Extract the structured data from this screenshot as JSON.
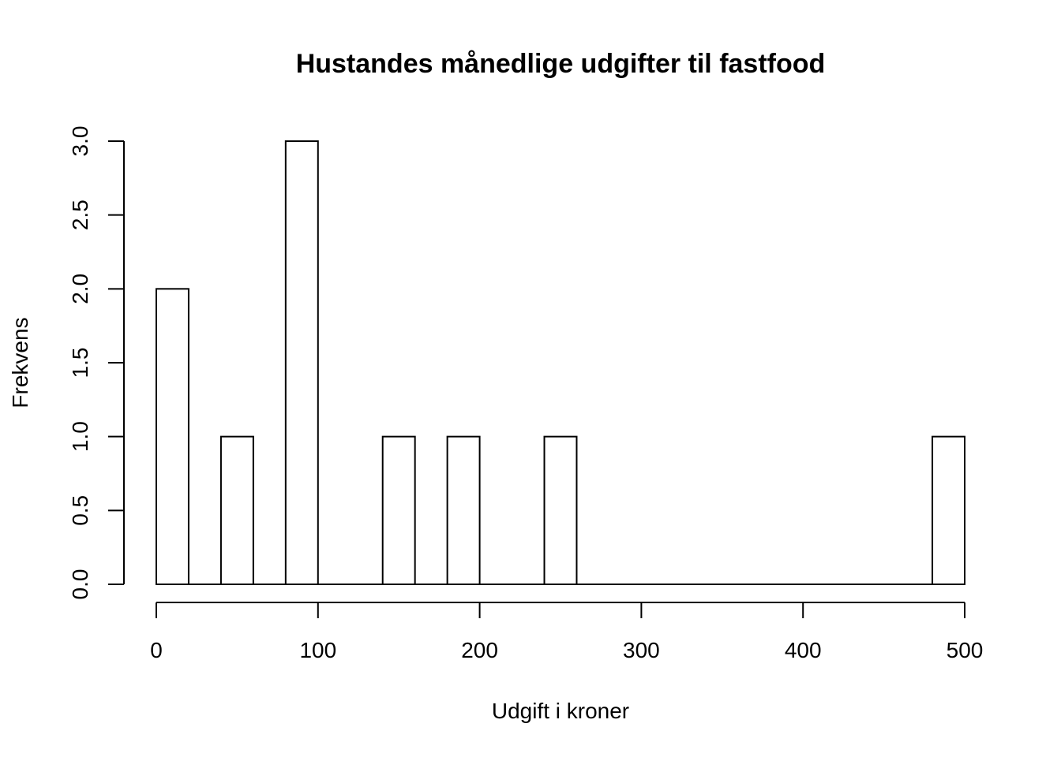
{
  "chart_data": {
    "type": "bar",
    "title": "Hustandes månedlige udgifter til fastfood",
    "xlabel": "Udgift i kroner",
    "ylabel": "Frekvens",
    "bin_width": 20,
    "bins": [
      {
        "start": 0,
        "end": 20,
        "count": 2
      },
      {
        "start": 20,
        "end": 40,
        "count": 0
      },
      {
        "start": 40,
        "end": 60,
        "count": 1
      },
      {
        "start": 60,
        "end": 80,
        "count": 0
      },
      {
        "start": 80,
        "end": 100,
        "count": 3
      },
      {
        "start": 100,
        "end": 120,
        "count": 0
      },
      {
        "start": 120,
        "end": 140,
        "count": 0
      },
      {
        "start": 140,
        "end": 160,
        "count": 1
      },
      {
        "start": 160,
        "end": 180,
        "count": 0
      },
      {
        "start": 180,
        "end": 200,
        "count": 1
      },
      {
        "start": 200,
        "end": 220,
        "count": 0
      },
      {
        "start": 220,
        "end": 240,
        "count": 0
      },
      {
        "start": 240,
        "end": 260,
        "count": 1
      },
      {
        "start": 260,
        "end": 280,
        "count": 0
      },
      {
        "start": 280,
        "end": 300,
        "count": 0
      },
      {
        "start": 300,
        "end": 320,
        "count": 0
      },
      {
        "start": 320,
        "end": 340,
        "count": 0
      },
      {
        "start": 340,
        "end": 360,
        "count": 0
      },
      {
        "start": 360,
        "end": 380,
        "count": 0
      },
      {
        "start": 380,
        "end": 400,
        "count": 0
      },
      {
        "start": 400,
        "end": 420,
        "count": 0
      },
      {
        "start": 420,
        "end": 440,
        "count": 0
      },
      {
        "start": 440,
        "end": 460,
        "count": 0
      },
      {
        "start": 460,
        "end": 480,
        "count": 0
      },
      {
        "start": 480,
        "end": 500,
        "count": 1
      }
    ],
    "xlim": [
      0,
      500
    ],
    "ylim": [
      0,
      3
    ],
    "x_ticks": [
      0,
      100,
      200,
      300,
      400,
      500
    ],
    "x_tick_labels": [
      "0",
      "100",
      "200",
      "300",
      "400",
      "500"
    ],
    "y_ticks": [
      0,
      0.5,
      1,
      1.5,
      2,
      2.5,
      3
    ],
    "y_tick_labels": [
      "0.0",
      "0.5",
      "1.0",
      "1.5",
      "2.0",
      "2.5",
      "3.0"
    ],
    "grid": false,
    "legend": "none",
    "colors": {
      "bar_fill": "#ffffff",
      "bar_stroke": "#000000",
      "axis": "#000000"
    }
  }
}
